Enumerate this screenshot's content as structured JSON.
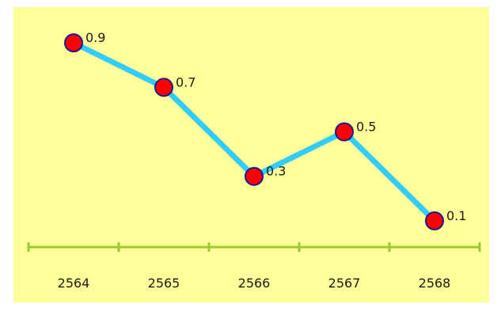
{
  "chart_data": {
    "type": "line",
    "categories": [
      "2564",
      "2565",
      "2566",
      "2567",
      "2568"
    ],
    "values": [
      0.9,
      0.7,
      0.3,
      0.5,
      0.1
    ],
    "data_labels": [
      "0.9",
      "0.7",
      "0.3",
      "0.5",
      "0.1"
    ],
    "title": "",
    "xlabel": "",
    "ylabel": "",
    "ylim": [
      0,
      1
    ],
    "grid": false,
    "legend": "none",
    "colors": {
      "background": "#ffff99",
      "line": "#33ccff",
      "marker_fill": "#ff0000",
      "marker_stroke": "#1a1a8c",
      "axis": "#99cc33"
    }
  }
}
